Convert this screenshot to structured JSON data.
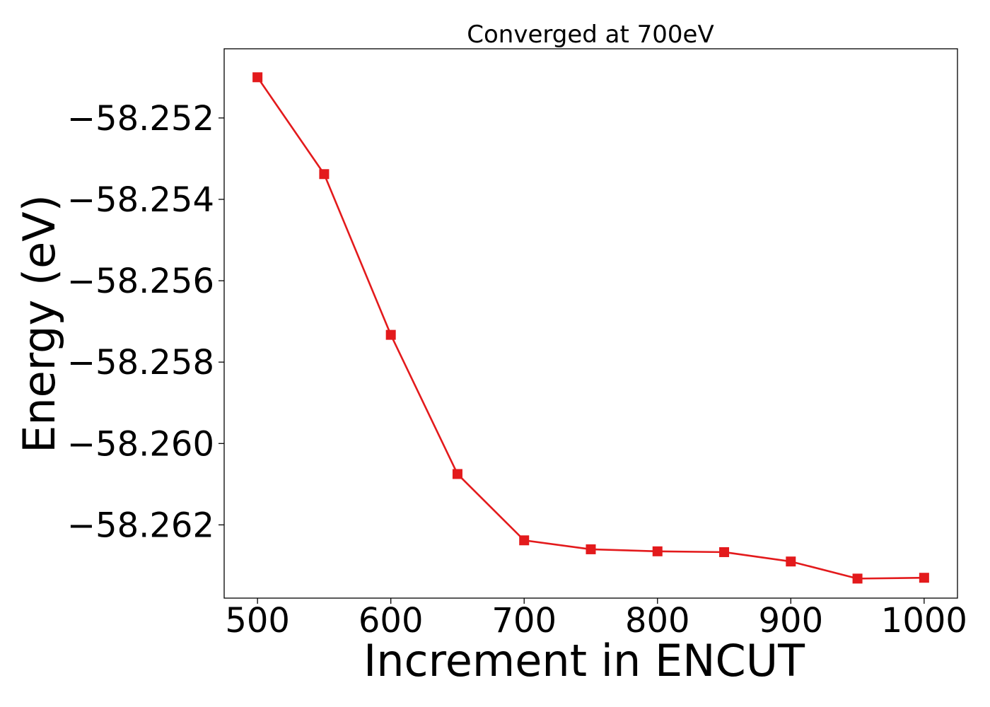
{
  "chart_data": {
    "type": "line",
    "title": "Converged at 700eV",
    "xlabel": "Increment in ENCUT",
    "ylabel": "Energy (eV)",
    "xlim": [
      475,
      1025
    ],
    "ylim": [
      -58.2638,
      -58.2503
    ],
    "x_ticks": [
      500,
      600,
      700,
      800,
      900,
      1000
    ],
    "x_tick_labels": [
      "500",
      "600",
      "700",
      "800",
      "900",
      "1000"
    ],
    "y_ticks": [
      -58.252,
      -58.254,
      -58.256,
      -58.258,
      -58.26,
      -58.262
    ],
    "y_tick_labels": [
      "−58.252",
      "−58.254",
      "−58.256",
      "−58.258",
      "−58.260",
      "−58.262"
    ],
    "grid": false,
    "colors": {
      "line": "#e31a1c",
      "axes": "#000000"
    },
    "series": [
      {
        "marker": "square",
        "x": [
          500,
          550,
          600,
          650,
          700,
          750,
          800,
          850,
          900,
          950,
          1000
        ],
        "y": [
          -58.251,
          -58.25338,
          -58.25733,
          -58.26075,
          -58.26238,
          -58.2626,
          -58.26265,
          -58.26267,
          -58.2629,
          -58.26332,
          -58.2633
        ]
      }
    ]
  }
}
